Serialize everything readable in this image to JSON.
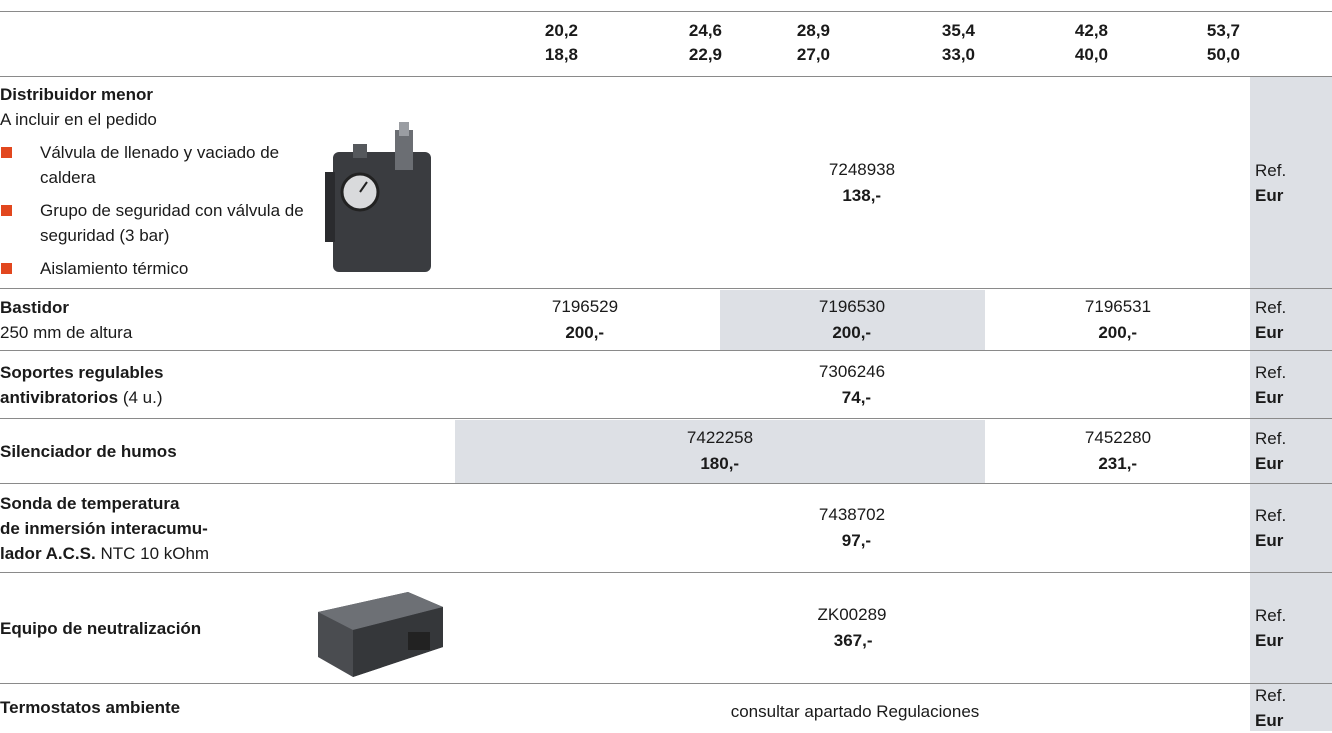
{
  "header": {
    "columns": [
      [
        "20,2",
        "18,8"
      ],
      [
        "24,6",
        "22,9"
      ],
      [
        "28,9",
        "27,0"
      ],
      [
        "35,4",
        "33,0"
      ],
      [
        "42,8",
        "40,0"
      ],
      [
        "53,7",
        "50,0"
      ]
    ]
  },
  "rows": [
    {
      "title": [
        "Distribuidor menor"
      ],
      "subtitle": "A incluir en el pedido",
      "bullets": [
        "Válvula de llenado y vaciado de caldera",
        "Grupo de seguridad con válvula de seguridad (3 bar)",
        "Aislamiento térmico"
      ],
      "cells": [
        {
          "ref": "7248938",
          "price": "138,-"
        }
      ],
      "ref_label": "Ref.",
      "price_label": "Eur"
    },
    {
      "title": [
        "Bastidor"
      ],
      "subtitle": "250 mm de altura",
      "cells": [
        {
          "ref": "7196529",
          "price": "200,-"
        },
        {
          "ref": "7196530",
          "price": "200,-"
        },
        {
          "ref": "7196531",
          "price": "200,-"
        }
      ],
      "ref_label": "Ref.",
      "price_label": "Eur"
    },
    {
      "title": [
        "Soportes regulables",
        "antivibratorios"
      ],
      "title_note": "(4 u.)",
      "cells": [
        {
          "ref": "7306246",
          "price": "74,-"
        }
      ],
      "ref_label": "Ref.",
      "price_label": "Eur"
    },
    {
      "title": [
        "Silenciador de humos"
      ],
      "cells": [
        {
          "ref": "7422258",
          "price": "180,-"
        },
        {
          "ref": "7452280",
          "price": "231,-"
        }
      ],
      "ref_label": "Ref.",
      "price_label": "Eur"
    },
    {
      "title": [
        "Sonda de temperatura",
        "de inmersión interacumu-",
        "lador A.C.S."
      ],
      "title_note": "NTC 10 kOhm",
      "cells": [
        {
          "ref": "7438702",
          "price": "97,-"
        }
      ],
      "ref_label": "Ref.",
      "price_label": "Eur"
    },
    {
      "title": [
        "Equipo de neutralización"
      ],
      "cells": [
        {
          "ref": "ZK00289",
          "price": "367,-"
        }
      ],
      "ref_label": "Ref.",
      "price_label": "Eur"
    },
    {
      "title": [
        "Termostatos ambiente"
      ],
      "cells": [
        {
          "note": "consultar apartado Regulaciones"
        }
      ],
      "ref_label": "Ref.",
      "price_label": "Eur"
    }
  ]
}
